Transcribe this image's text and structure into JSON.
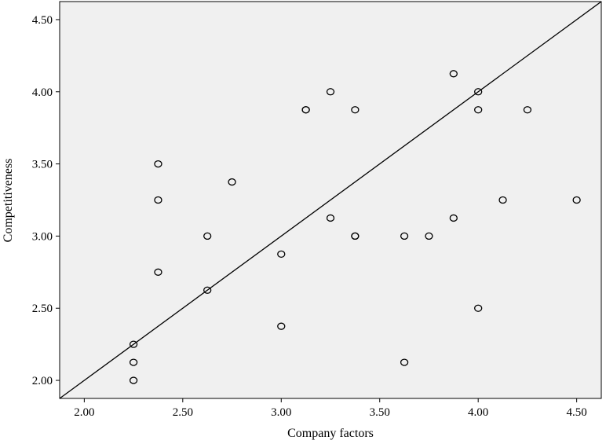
{
  "chart_data": {
    "type": "scatter",
    "title": "",
    "xlabel": "Company factors",
    "ylabel": "Competitiveness",
    "xlim": [
      1.875,
      4.625
    ],
    "ylim": [
      1.875,
      4.625
    ],
    "x_ticks": [
      "2.00",
      "2.50",
      "3.00",
      "3.50",
      "4.00",
      "4.50"
    ],
    "y_ticks": [
      "2.00",
      "2.50",
      "3.00",
      "3.50",
      "4.00",
      "4.50"
    ],
    "grid": false,
    "legend": "none",
    "reference_line": {
      "type": "y=x",
      "color": "#000000"
    },
    "colors": {
      "plot_background": "#f0f0f0",
      "marker": "#000000",
      "line": "#000000"
    },
    "points": [
      {
        "x": 2.25,
        "y": 2.25
      },
      {
        "x": 2.25,
        "y": 2.125
      },
      {
        "x": 2.25,
        "y": 2.0
      },
      {
        "x": 2.375,
        "y": 3.5
      },
      {
        "x": 2.375,
        "y": 3.25
      },
      {
        "x": 2.375,
        "y": 2.75
      },
      {
        "x": 2.625,
        "y": 3.0
      },
      {
        "x": 2.625,
        "y": 2.625
      },
      {
        "x": 2.75,
        "y": 3.375
      },
      {
        "x": 3.0,
        "y": 2.875
      },
      {
        "x": 3.0,
        "y": 2.375
      },
      {
        "x": 3.125,
        "y": 3.875
      },
      {
        "x": 3.125,
        "y": 3.875
      },
      {
        "x": 3.25,
        "y": 4.0
      },
      {
        "x": 3.25,
        "y": 3.125
      },
      {
        "x": 3.375,
        "y": 3.875
      },
      {
        "x": 3.375,
        "y": 3.0
      },
      {
        "x": 3.375,
        "y": 3.0
      },
      {
        "x": 3.625,
        "y": 3.0
      },
      {
        "x": 3.625,
        "y": 2.125
      },
      {
        "x": 3.75,
        "y": 3.0
      },
      {
        "x": 3.875,
        "y": 4.125
      },
      {
        "x": 3.875,
        "y": 3.125
      },
      {
        "x": 4.0,
        "y": 4.0
      },
      {
        "x": 4.0,
        "y": 3.875
      },
      {
        "x": 4.0,
        "y": 2.5
      },
      {
        "x": 4.125,
        "y": 3.25
      },
      {
        "x": 4.25,
        "y": 3.875
      },
      {
        "x": 4.5,
        "y": 3.25
      }
    ]
  }
}
